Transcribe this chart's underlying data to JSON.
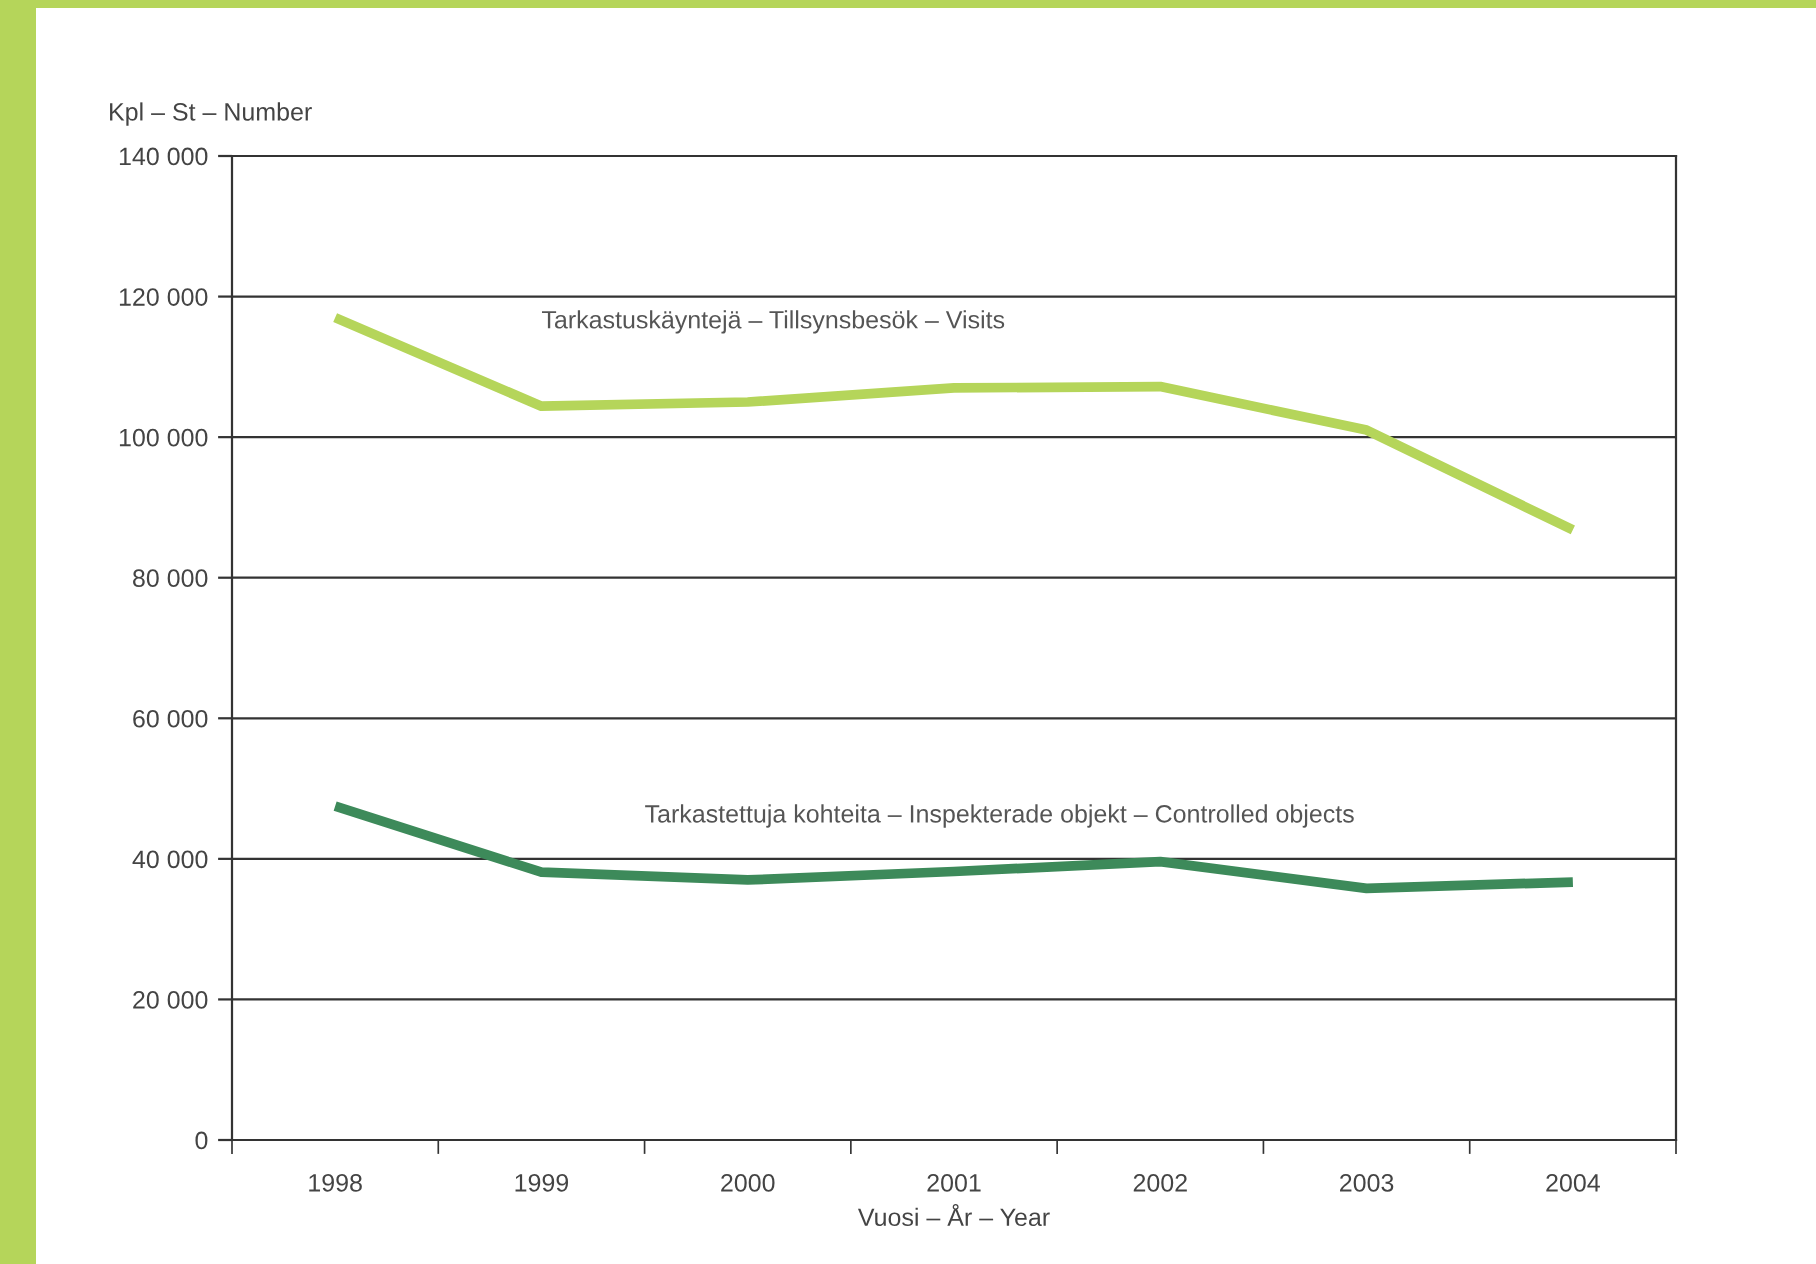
{
  "chart_data": {
    "type": "line",
    "ylabel": "Kpl – St – Number",
    "xlabel": "Vuosi – År – Year",
    "categories": [
      "1998",
      "1999",
      "2000",
      "2001",
      "2002",
      "2003",
      "2004"
    ],
    "series": [
      {
        "name": "Tarkastuskäyntejä – Tillsynsbesök – Visits",
        "color": "#b5d55a",
        "values": [
          117000,
          104400,
          105000,
          107000,
          107200,
          101000,
          86800
        ]
      },
      {
        "name": "Tarkastettuja kohteita – Inspekterade objekt – Controlled objects",
        "color": "#3d8a5a",
        "values": [
          47500,
          38100,
          37000,
          38200,
          39600,
          35800,
          36700
        ]
      }
    ],
    "ylim": [
      0,
      140000
    ],
    "yticks": [
      0,
      {
        "value": 20000,
        "label": "20 000"
      },
      {
        "value": 40000,
        "label": "40 000"
      },
      {
        "value": 60000,
        "label": "60 000"
      },
      {
        "value": 80000,
        "label": "80 000"
      },
      {
        "value": 100000,
        "label": "100 000"
      },
      {
        "value": 120000,
        "label": "120 000"
      },
      {
        "value": 140000,
        "label": "140 000"
      }
    ],
    "grid": "y",
    "legend": false,
    "marker": "none",
    "line_style": "solid"
  }
}
